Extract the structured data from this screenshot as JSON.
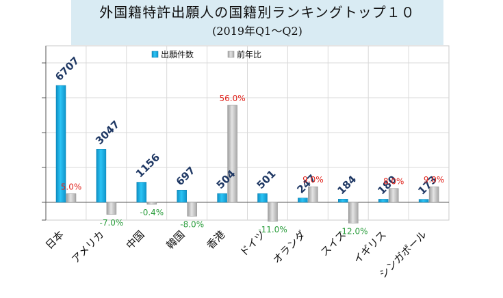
{
  "chart_data": {
    "type": "bar",
    "title_line1": "外国籍特許出願人の国籍別ランキングトップ１０",
    "title_line2": "(2019年Q1～Q2)",
    "categories": [
      "日本",
      "アメリカ",
      "中国",
      "韓国",
      "香港",
      "ドイツ",
      "オランダ",
      "スイス",
      "イギリス",
      "シンガポール"
    ],
    "series": [
      {
        "name": "出願件数",
        "values": [
          6707,
          3047,
          1156,
          697,
          504,
          501,
          247,
          184,
          180,
          173
        ],
        "labels": [
          "6707",
          "3047",
          "1156",
          "697",
          "504",
          "501",
          "247",
          "184",
          "180",
          "173"
        ],
        "color": "#1fb3e8"
      },
      {
        "name": "前年比",
        "values": [
          5.0,
          -7.0,
          -0.4,
          -8.0,
          56.0,
          -11.0,
          9.0,
          -12.0,
          8.0,
          9.0
        ],
        "labels": [
          "5.0%",
          "-7.0%",
          "-0.4%",
          "-8.0%",
          "56.0%",
          "-11.0%",
          "9.0%",
          "-12.0%",
          "8.0%",
          "9.0%"
        ],
        "color": "#c0c0c0"
      }
    ],
    "positive_label_color": "#e0231c",
    "negative_label_color": "#2a9d3c",
    "count_label_color": "#1f3864",
    "legend_position": "top",
    "grid": true
  }
}
